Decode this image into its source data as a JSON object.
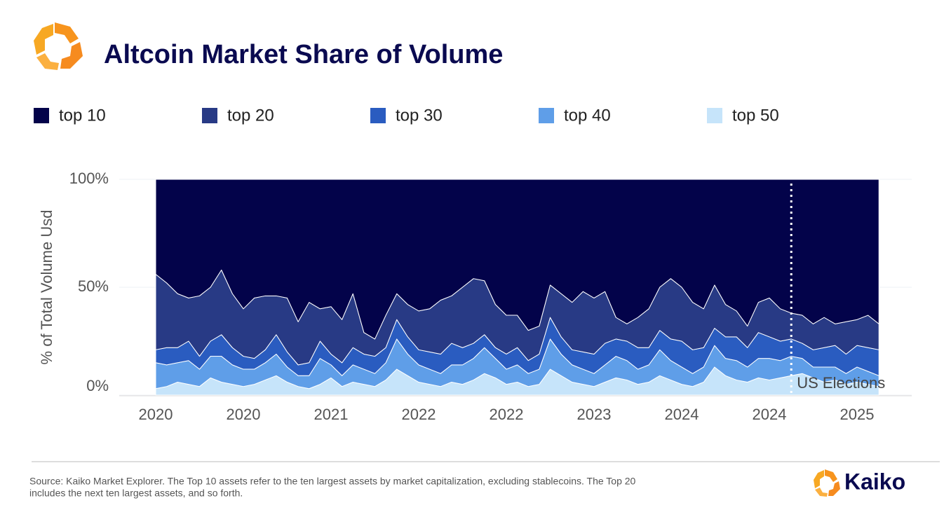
{
  "chart_data": {
    "type": "stacked_area",
    "title": "Altcoin Market Share of Volume",
    "ylabel": "% of Total Volume Usd",
    "categories": [
      "2020",
      null,
      null,
      null,
      null,
      null,
      null,
      null,
      "2020",
      null,
      null,
      null,
      null,
      null,
      null,
      null,
      "2021",
      null,
      null,
      null,
      null,
      null,
      null,
      null,
      "2022",
      null,
      null,
      null,
      null,
      null,
      null,
      null,
      "2022",
      null,
      null,
      null,
      null,
      null,
      null,
      null,
      "2023",
      null,
      null,
      null,
      null,
      null,
      null,
      null,
      "2024",
      null,
      null,
      null,
      null,
      null,
      null,
      null,
      "2024",
      null,
      null,
      null,
      null,
      null,
      null,
      null,
      "2025",
      null,
      null
    ],
    "series": [
      {
        "name": "top 10",
        "color": "#03034a",
        "values": [
          44,
          48,
          53,
          55,
          54,
          50,
          42,
          53,
          60,
          55,
          54,
          54,
          55,
          66,
          57,
          60,
          59,
          65,
          53,
          71,
          74,
          63,
          53,
          58,
          61,
          60,
          56,
          54,
          50,
          46,
          47,
          58,
          63,
          63,
          70,
          68,
          49,
          53,
          57,
          52,
          55,
          52,
          64,
          67,
          64,
          60,
          50,
          46,
          50,
          57,
          60,
          49,
          58,
          61,
          68,
          57,
          55,
          60,
          62,
          63,
          67,
          64,
          67,
          66,
          65,
          63,
          67
        ]
      },
      {
        "name": "top 20",
        "color": "#283a85",
        "values": [
          35,
          30,
          25,
          20,
          28,
          25,
          30,
          25,
          22,
          28,
          25,
          18,
          25,
          20,
          28,
          15,
          22,
          20,
          25,
          10,
          8,
          15,
          12,
          15,
          18,
          20,
          25,
          22,
          28,
          30,
          25,
          20,
          18,
          15,
          14,
          13,
          15,
          20,
          22,
          28,
          26,
          24,
          10,
          8,
          14,
          18,
          20,
          28,
          25,
          22,
          18,
          20,
          15,
          12,
          10,
          14,
          18,
          15,
          12,
          13,
          12,
          14,
          10,
          15,
          12,
          15,
          12
        ]
      },
      {
        "name": "top 30",
        "color": "#2a5cc0",
        "values": [
          6,
          8,
          7,
          9,
          6,
          7,
          10,
          8,
          6,
          5,
          6,
          9,
          7,
          5,
          6,
          8,
          5,
          6,
          8,
          7,
          8,
          7,
          9,
          8,
          7,
          8,
          9,
          10,
          8,
          7,
          6,
          5,
          7,
          8,
          6,
          7,
          10,
          8,
          7,
          8,
          9,
          10,
          8,
          9,
          10,
          8,
          9,
          10,
          12,
          11,
          9,
          8,
          10,
          11,
          9,
          12,
          10,
          9,
          8,
          7,
          8,
          9,
          10,
          9,
          10,
          11,
          12
        ]
      },
      {
        "name": "top 40",
        "color": "#5f9ee8",
        "values": [
          12,
          10,
          9,
          11,
          8,
          10,
          12,
          9,
          8,
          7,
          8,
          10,
          7,
          5,
          6,
          12,
          6,
          5,
          8,
          7,
          6,
          8,
          14,
          10,
          8,
          7,
          6,
          8,
          9,
          10,
          12,
          9,
          7,
          8,
          6,
          7,
          14,
          10,
          8,
          7,
          6,
          8,
          10,
          9,
          7,
          8,
          12,
          9,
          8,
          6,
          7,
          10,
          8,
          9,
          7,
          9,
          10,
          8,
          9,
          7,
          5,
          7,
          6,
          5,
          7,
          6,
          5
        ]
      },
      {
        "name": "top 50",
        "color": "#c6e4fa",
        "values": [
          3,
          4,
          6,
          5,
          4,
          8,
          6,
          5,
          4,
          5,
          7,
          9,
          6,
          4,
          3,
          5,
          8,
          4,
          6,
          5,
          4,
          7,
          12,
          9,
          6,
          5,
          4,
          6,
          5,
          7,
          10,
          8,
          5,
          6,
          4,
          5,
          12,
          9,
          6,
          5,
          4,
          6,
          8,
          7,
          5,
          6,
          9,
          7,
          5,
          4,
          6,
          13,
          9,
          7,
          6,
          8,
          7,
          8,
          9,
          10,
          8,
          6,
          7,
          5,
          6,
          5,
          4
        ]
      }
    ],
    "ylim": [
      0,
      100
    ],
    "yticks": [
      {
        "value": 0,
        "label": "0%"
      },
      {
        "value": 50,
        "label": "50%"
      },
      {
        "value": 100,
        "label": "100%"
      }
    ],
    "grid": true,
    "legend": "top",
    "annotation": {
      "text": "US Elections",
      "at": 58
    },
    "source": [
      "Source: Kaiko Market Explorer. The Top 10 assets refer to the ten largest assets by market capitalization, excluding stablecoins. The Top 20",
      "includes the next ten largest assets, and so forth."
    ]
  },
  "logo_text": "Kaiko"
}
